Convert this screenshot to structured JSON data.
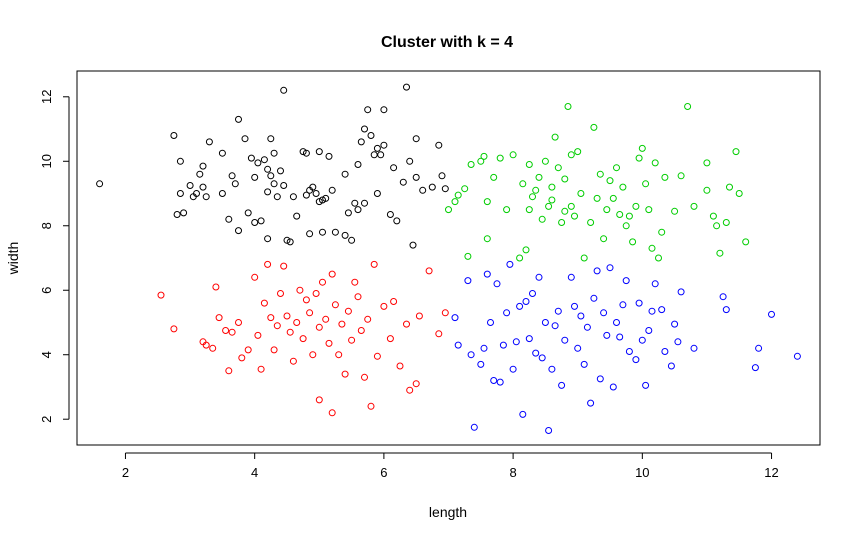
{
  "chart_data": {
    "type": "scatter",
    "title": "Cluster with k = 4",
    "xlabel": "length",
    "ylabel": "width",
    "xlim": [
      1.25,
      12.75
    ],
    "ylim": [
      1.2,
      12.8
    ],
    "xticks": [
      "2",
      "4",
      "6",
      "8",
      "10",
      "12"
    ],
    "yticks": [
      "2",
      "4",
      "6",
      "8",
      "10",
      "12"
    ],
    "grid": false,
    "legend": "none",
    "series": [
      {
        "color": "#000000",
        "points": [
          [
            1.6,
            9.3
          ],
          [
            2.75,
            10.8
          ],
          [
            2.8,
            8.35
          ],
          [
            2.85,
            10.0
          ],
          [
            2.85,
            9.0
          ],
          [
            2.9,
            8.4
          ],
          [
            3.0,
            9.25
          ],
          [
            3.05,
            8.9
          ],
          [
            3.1,
            9.0
          ],
          [
            3.15,
            9.6
          ],
          [
            3.2,
            9.85
          ],
          [
            3.2,
            9.2
          ],
          [
            3.25,
            8.9
          ],
          [
            3.3,
            10.6
          ],
          [
            3.5,
            10.25
          ],
          [
            3.5,
            9.0
          ],
          [
            3.6,
            8.2
          ],
          [
            3.65,
            9.55
          ],
          [
            3.7,
            9.3
          ],
          [
            3.75,
            11.3
          ],
          [
            3.75,
            7.85
          ],
          [
            3.85,
            10.7
          ],
          [
            3.9,
            8.4
          ],
          [
            3.95,
            10.1
          ],
          [
            4.0,
            9.5
          ],
          [
            4.0,
            8.1
          ],
          [
            4.05,
            9.95
          ],
          [
            4.1,
            8.15
          ],
          [
            4.15,
            10.05
          ],
          [
            4.2,
            9.75
          ],
          [
            4.2,
            9.05
          ],
          [
            4.2,
            7.6
          ],
          [
            4.25,
            10.7
          ],
          [
            4.25,
            9.55
          ],
          [
            4.3,
            9.3
          ],
          [
            4.3,
            10.25
          ],
          [
            4.35,
            8.9
          ],
          [
            4.4,
            9.7
          ],
          [
            4.45,
            9.25
          ],
          [
            4.45,
            12.2
          ],
          [
            4.5,
            7.55
          ],
          [
            4.55,
            7.5
          ],
          [
            4.6,
            8.9
          ],
          [
            4.65,
            8.3
          ],
          [
            4.75,
            10.3
          ],
          [
            4.8,
            10.25
          ],
          [
            4.8,
            8.95
          ],
          [
            4.85,
            9.1
          ],
          [
            4.85,
            7.75
          ],
          [
            4.9,
            9.2
          ],
          [
            4.95,
            9.0
          ],
          [
            5.0,
            10.3
          ],
          [
            5.0,
            8.75
          ],
          [
            5.05,
            8.8
          ],
          [
            5.05,
            7.8
          ],
          [
            5.1,
            8.85
          ],
          [
            5.15,
            10.15
          ],
          [
            5.2,
            9.1
          ],
          [
            5.25,
            7.8
          ],
          [
            5.4,
            9.6
          ],
          [
            5.4,
            7.7
          ],
          [
            5.45,
            8.4
          ],
          [
            5.5,
            7.55
          ],
          [
            5.55,
            8.7
          ],
          [
            5.6,
            9.9
          ],
          [
            5.6,
            8.5
          ],
          [
            5.65,
            10.6
          ],
          [
            5.7,
            8.7
          ],
          [
            5.7,
            11.0
          ],
          [
            5.75,
            11.6
          ],
          [
            5.8,
            10.8
          ],
          [
            5.85,
            10.2
          ],
          [
            5.9,
            9.0
          ],
          [
            5.9,
            10.4
          ],
          [
            5.95,
            10.2
          ],
          [
            6.0,
            11.6
          ],
          [
            6.0,
            10.5
          ],
          [
            6.1,
            8.35
          ],
          [
            6.15,
            9.8
          ],
          [
            6.2,
            8.15
          ],
          [
            6.3,
            9.35
          ],
          [
            6.35,
            12.3
          ],
          [
            6.4,
            10.0
          ],
          [
            6.45,
            7.4
          ],
          [
            6.5,
            9.5
          ],
          [
            6.5,
            10.7
          ],
          [
            6.6,
            9.1
          ],
          [
            6.75,
            9.2
          ],
          [
            6.85,
            10.5
          ],
          [
            6.9,
            9.55
          ],
          [
            6.95,
            9.15
          ]
        ]
      },
      {
        "color": "#00cd00",
        "points": [
          [
            7.0,
            8.5
          ],
          [
            7.1,
            8.75
          ],
          [
            7.15,
            8.95
          ],
          [
            7.25,
            9.15
          ],
          [
            7.3,
            7.05
          ],
          [
            7.35,
            9.9
          ],
          [
            7.5,
            10.0
          ],
          [
            7.55,
            10.15
          ],
          [
            7.6,
            8.75
          ],
          [
            7.6,
            7.6
          ],
          [
            7.7,
            9.5
          ],
          [
            7.8,
            10.1
          ],
          [
            7.9,
            8.5
          ],
          [
            8.0,
            10.2
          ],
          [
            8.1,
            7.0
          ],
          [
            8.15,
            9.3
          ],
          [
            8.2,
            7.25
          ],
          [
            8.25,
            9.9
          ],
          [
            8.25,
            8.5
          ],
          [
            8.3,
            8.9
          ],
          [
            8.35,
            9.1
          ],
          [
            8.4,
            9.5
          ],
          [
            8.45,
            8.2
          ],
          [
            8.5,
            10.0
          ],
          [
            8.55,
            8.6
          ],
          [
            8.6,
            8.8
          ],
          [
            8.6,
            9.2
          ],
          [
            8.65,
            10.75
          ],
          [
            8.7,
            9.8
          ],
          [
            8.75,
            8.1
          ],
          [
            8.8,
            8.45
          ],
          [
            8.8,
            9.45
          ],
          [
            8.85,
            11.7
          ],
          [
            8.9,
            10.2
          ],
          [
            8.9,
            8.6
          ],
          [
            8.95,
            8.3
          ],
          [
            9.0,
            10.3
          ],
          [
            9.05,
            9.0
          ],
          [
            9.1,
            7.0
          ],
          [
            9.2,
            8.1
          ],
          [
            9.25,
            11.05
          ],
          [
            9.3,
            8.85
          ],
          [
            9.35,
            9.6
          ],
          [
            9.4,
            7.6
          ],
          [
            9.45,
            8.5
          ],
          [
            9.5,
            9.4
          ],
          [
            9.55,
            8.85
          ],
          [
            9.6,
            9.8
          ],
          [
            9.65,
            8.35
          ],
          [
            9.7,
            9.2
          ],
          [
            9.75,
            8.0
          ],
          [
            9.8,
            8.3
          ],
          [
            9.85,
            7.5
          ],
          [
            9.9,
            8.6
          ],
          [
            9.95,
            10.1
          ],
          [
            10.0,
            10.4
          ],
          [
            10.05,
            9.3
          ],
          [
            10.1,
            8.5
          ],
          [
            10.15,
            7.3
          ],
          [
            10.2,
            9.95
          ],
          [
            10.25,
            7.0
          ],
          [
            10.3,
            7.8
          ],
          [
            10.35,
            9.5
          ],
          [
            10.5,
            8.45
          ],
          [
            10.6,
            9.55
          ],
          [
            10.7,
            11.7
          ],
          [
            10.8,
            8.6
          ],
          [
            11.0,
            9.95
          ],
          [
            11.0,
            9.1
          ],
          [
            11.1,
            8.3
          ],
          [
            11.15,
            8.0
          ],
          [
            11.2,
            7.15
          ],
          [
            11.3,
            8.1
          ],
          [
            11.35,
            9.2
          ],
          [
            11.45,
            10.3
          ],
          [
            11.5,
            9.0
          ],
          [
            11.6,
            7.5
          ]
        ]
      },
      {
        "color": "#ff0000",
        "points": [
          [
            2.55,
            5.85
          ],
          [
            2.75,
            4.8
          ],
          [
            3.2,
            4.4
          ],
          [
            3.25,
            4.3
          ],
          [
            3.35,
            4.2
          ],
          [
            3.4,
            6.1
          ],
          [
            3.45,
            5.15
          ],
          [
            3.55,
            4.75
          ],
          [
            3.6,
            3.5
          ],
          [
            3.65,
            4.7
          ],
          [
            3.75,
            5.0
          ],
          [
            3.8,
            3.9
          ],
          [
            3.9,
            4.15
          ],
          [
            4.0,
            6.4
          ],
          [
            4.05,
            4.6
          ],
          [
            4.1,
            3.55
          ],
          [
            4.15,
            5.6
          ],
          [
            4.2,
            6.8
          ],
          [
            4.25,
            5.15
          ],
          [
            4.3,
            4.15
          ],
          [
            4.35,
            4.9
          ],
          [
            4.4,
            5.9
          ],
          [
            4.45,
            6.75
          ],
          [
            4.5,
            5.2
          ],
          [
            4.55,
            4.7
          ],
          [
            4.6,
            3.8
          ],
          [
            4.65,
            5.0
          ],
          [
            4.7,
            6.0
          ],
          [
            4.75,
            4.5
          ],
          [
            4.8,
            5.7
          ],
          [
            4.85,
            5.3
          ],
          [
            4.9,
            4.0
          ],
          [
            4.95,
            5.9
          ],
          [
            5.0,
            4.85
          ],
          [
            5.0,
            2.6
          ],
          [
            5.05,
            6.25
          ],
          [
            5.1,
            5.1
          ],
          [
            5.15,
            4.35
          ],
          [
            5.2,
            6.5
          ],
          [
            5.2,
            2.2
          ],
          [
            5.25,
            5.55
          ],
          [
            5.3,
            4.0
          ],
          [
            5.35,
            4.95
          ],
          [
            5.4,
            3.4
          ],
          [
            5.45,
            5.35
          ],
          [
            5.5,
            4.45
          ],
          [
            5.55,
            6.25
          ],
          [
            5.6,
            5.8
          ],
          [
            5.65,
            4.75
          ],
          [
            5.7,
            3.3
          ],
          [
            5.75,
            5.1
          ],
          [
            5.8,
            2.4
          ],
          [
            5.85,
            6.8
          ],
          [
            5.9,
            3.95
          ],
          [
            6.0,
            5.5
          ],
          [
            6.1,
            4.5
          ],
          [
            6.15,
            5.65
          ],
          [
            6.25,
            3.65
          ],
          [
            6.35,
            4.95
          ],
          [
            6.4,
            2.9
          ],
          [
            6.5,
            3.1
          ],
          [
            6.55,
            5.2
          ],
          [
            6.7,
            6.6
          ],
          [
            6.85,
            4.65
          ],
          [
            6.95,
            5.3
          ]
        ]
      },
      {
        "color": "#0000ff",
        "points": [
          [
            7.1,
            5.15
          ],
          [
            7.15,
            4.3
          ],
          [
            7.3,
            6.3
          ],
          [
            7.35,
            4.0
          ],
          [
            7.4,
            1.75
          ],
          [
            7.5,
            3.7
          ],
          [
            7.55,
            4.2
          ],
          [
            7.6,
            6.5
          ],
          [
            7.65,
            5.0
          ],
          [
            7.7,
            3.2
          ],
          [
            7.75,
            6.2
          ],
          [
            7.8,
            3.15
          ],
          [
            7.85,
            4.3
          ],
          [
            7.9,
            5.3
          ],
          [
            7.95,
            6.8
          ],
          [
            8.0,
            3.55
          ],
          [
            8.05,
            4.4
          ],
          [
            8.1,
            5.5
          ],
          [
            8.15,
            2.15
          ],
          [
            8.2,
            5.65
          ],
          [
            8.25,
            4.5
          ],
          [
            8.3,
            5.9
          ],
          [
            8.35,
            4.05
          ],
          [
            8.4,
            6.4
          ],
          [
            8.45,
            3.9
          ],
          [
            8.5,
            5.0
          ],
          [
            8.55,
            1.65
          ],
          [
            8.6,
            3.55
          ],
          [
            8.65,
            4.9
          ],
          [
            8.7,
            5.35
          ],
          [
            8.75,
            3.05
          ],
          [
            8.8,
            4.45
          ],
          [
            8.9,
            6.4
          ],
          [
            8.95,
            5.5
          ],
          [
            9.0,
            4.2
          ],
          [
            9.05,
            5.2
          ],
          [
            9.1,
            3.7
          ],
          [
            9.15,
            4.85
          ],
          [
            9.2,
            2.5
          ],
          [
            9.25,
            5.75
          ],
          [
            9.3,
            6.6
          ],
          [
            9.35,
            3.25
          ],
          [
            9.4,
            5.3
          ],
          [
            9.45,
            4.6
          ],
          [
            9.5,
            6.7
          ],
          [
            9.55,
            3.0
          ],
          [
            9.6,
            5.0
          ],
          [
            9.65,
            4.55
          ],
          [
            9.7,
            5.55
          ],
          [
            9.75,
            6.3
          ],
          [
            9.8,
            4.1
          ],
          [
            9.9,
            3.85
          ],
          [
            9.95,
            5.6
          ],
          [
            10.0,
            4.45
          ],
          [
            10.05,
            3.05
          ],
          [
            10.1,
            4.75
          ],
          [
            10.15,
            5.35
          ],
          [
            10.2,
            6.2
          ],
          [
            10.3,
            5.4
          ],
          [
            10.35,
            4.1
          ],
          [
            10.45,
            3.65
          ],
          [
            10.5,
            4.95
          ],
          [
            10.55,
            4.4
          ],
          [
            10.6,
            5.95
          ],
          [
            10.8,
            4.2
          ],
          [
            11.25,
            5.8
          ],
          [
            11.3,
            5.4
          ],
          [
            11.75,
            3.6
          ],
          [
            11.8,
            4.2
          ],
          [
            12.0,
            5.25
          ],
          [
            12.4,
            3.95
          ]
        ]
      }
    ]
  }
}
